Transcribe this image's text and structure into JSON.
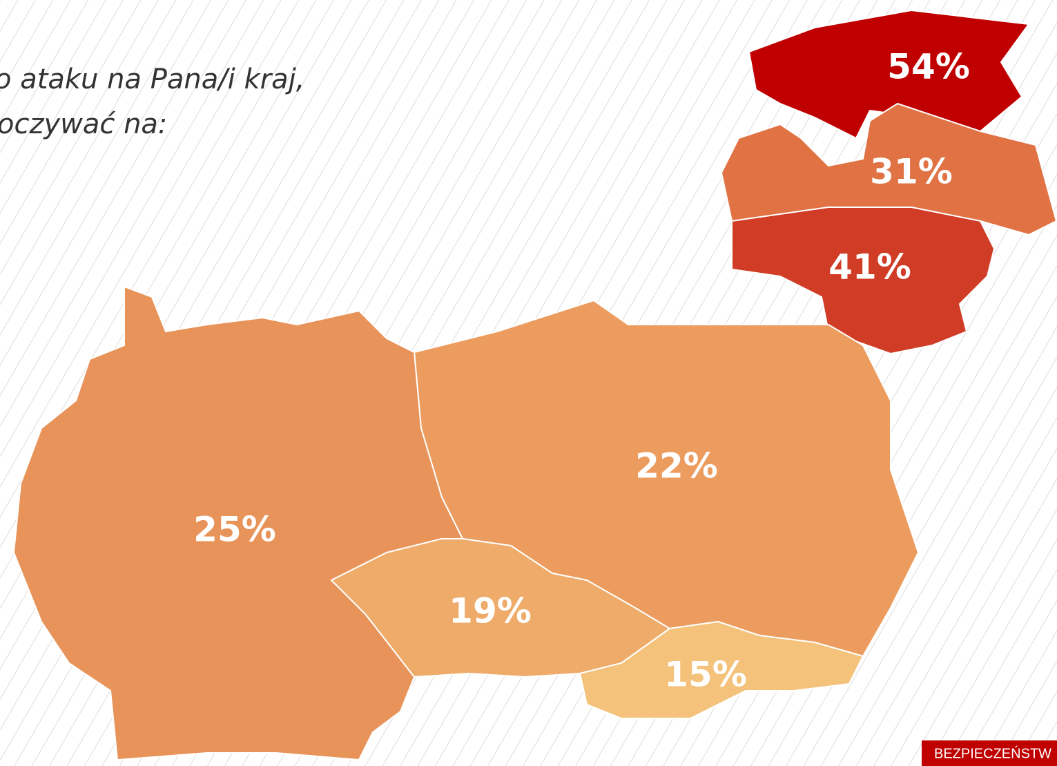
{
  "chart_data": {
    "type": "map",
    "title_lines": [
      "o ataku na Pana/i kraj,",
      "oczywać na:"
    ],
    "values": [
      54,
      31,
      41,
      22,
      25,
      19,
      15
    ],
    "value_labels": [
      "54%",
      "31%",
      "41%",
      "22%",
      "25%",
      "19%",
      "15%"
    ],
    "colors": [
      "#c00000",
      "#e07244",
      "#d03c25",
      "#eb9c5e",
      "#e8935a",
      "#eeab69",
      "#f4c27a"
    ],
    "footer": "BEZPIECZEŃSTW"
  }
}
